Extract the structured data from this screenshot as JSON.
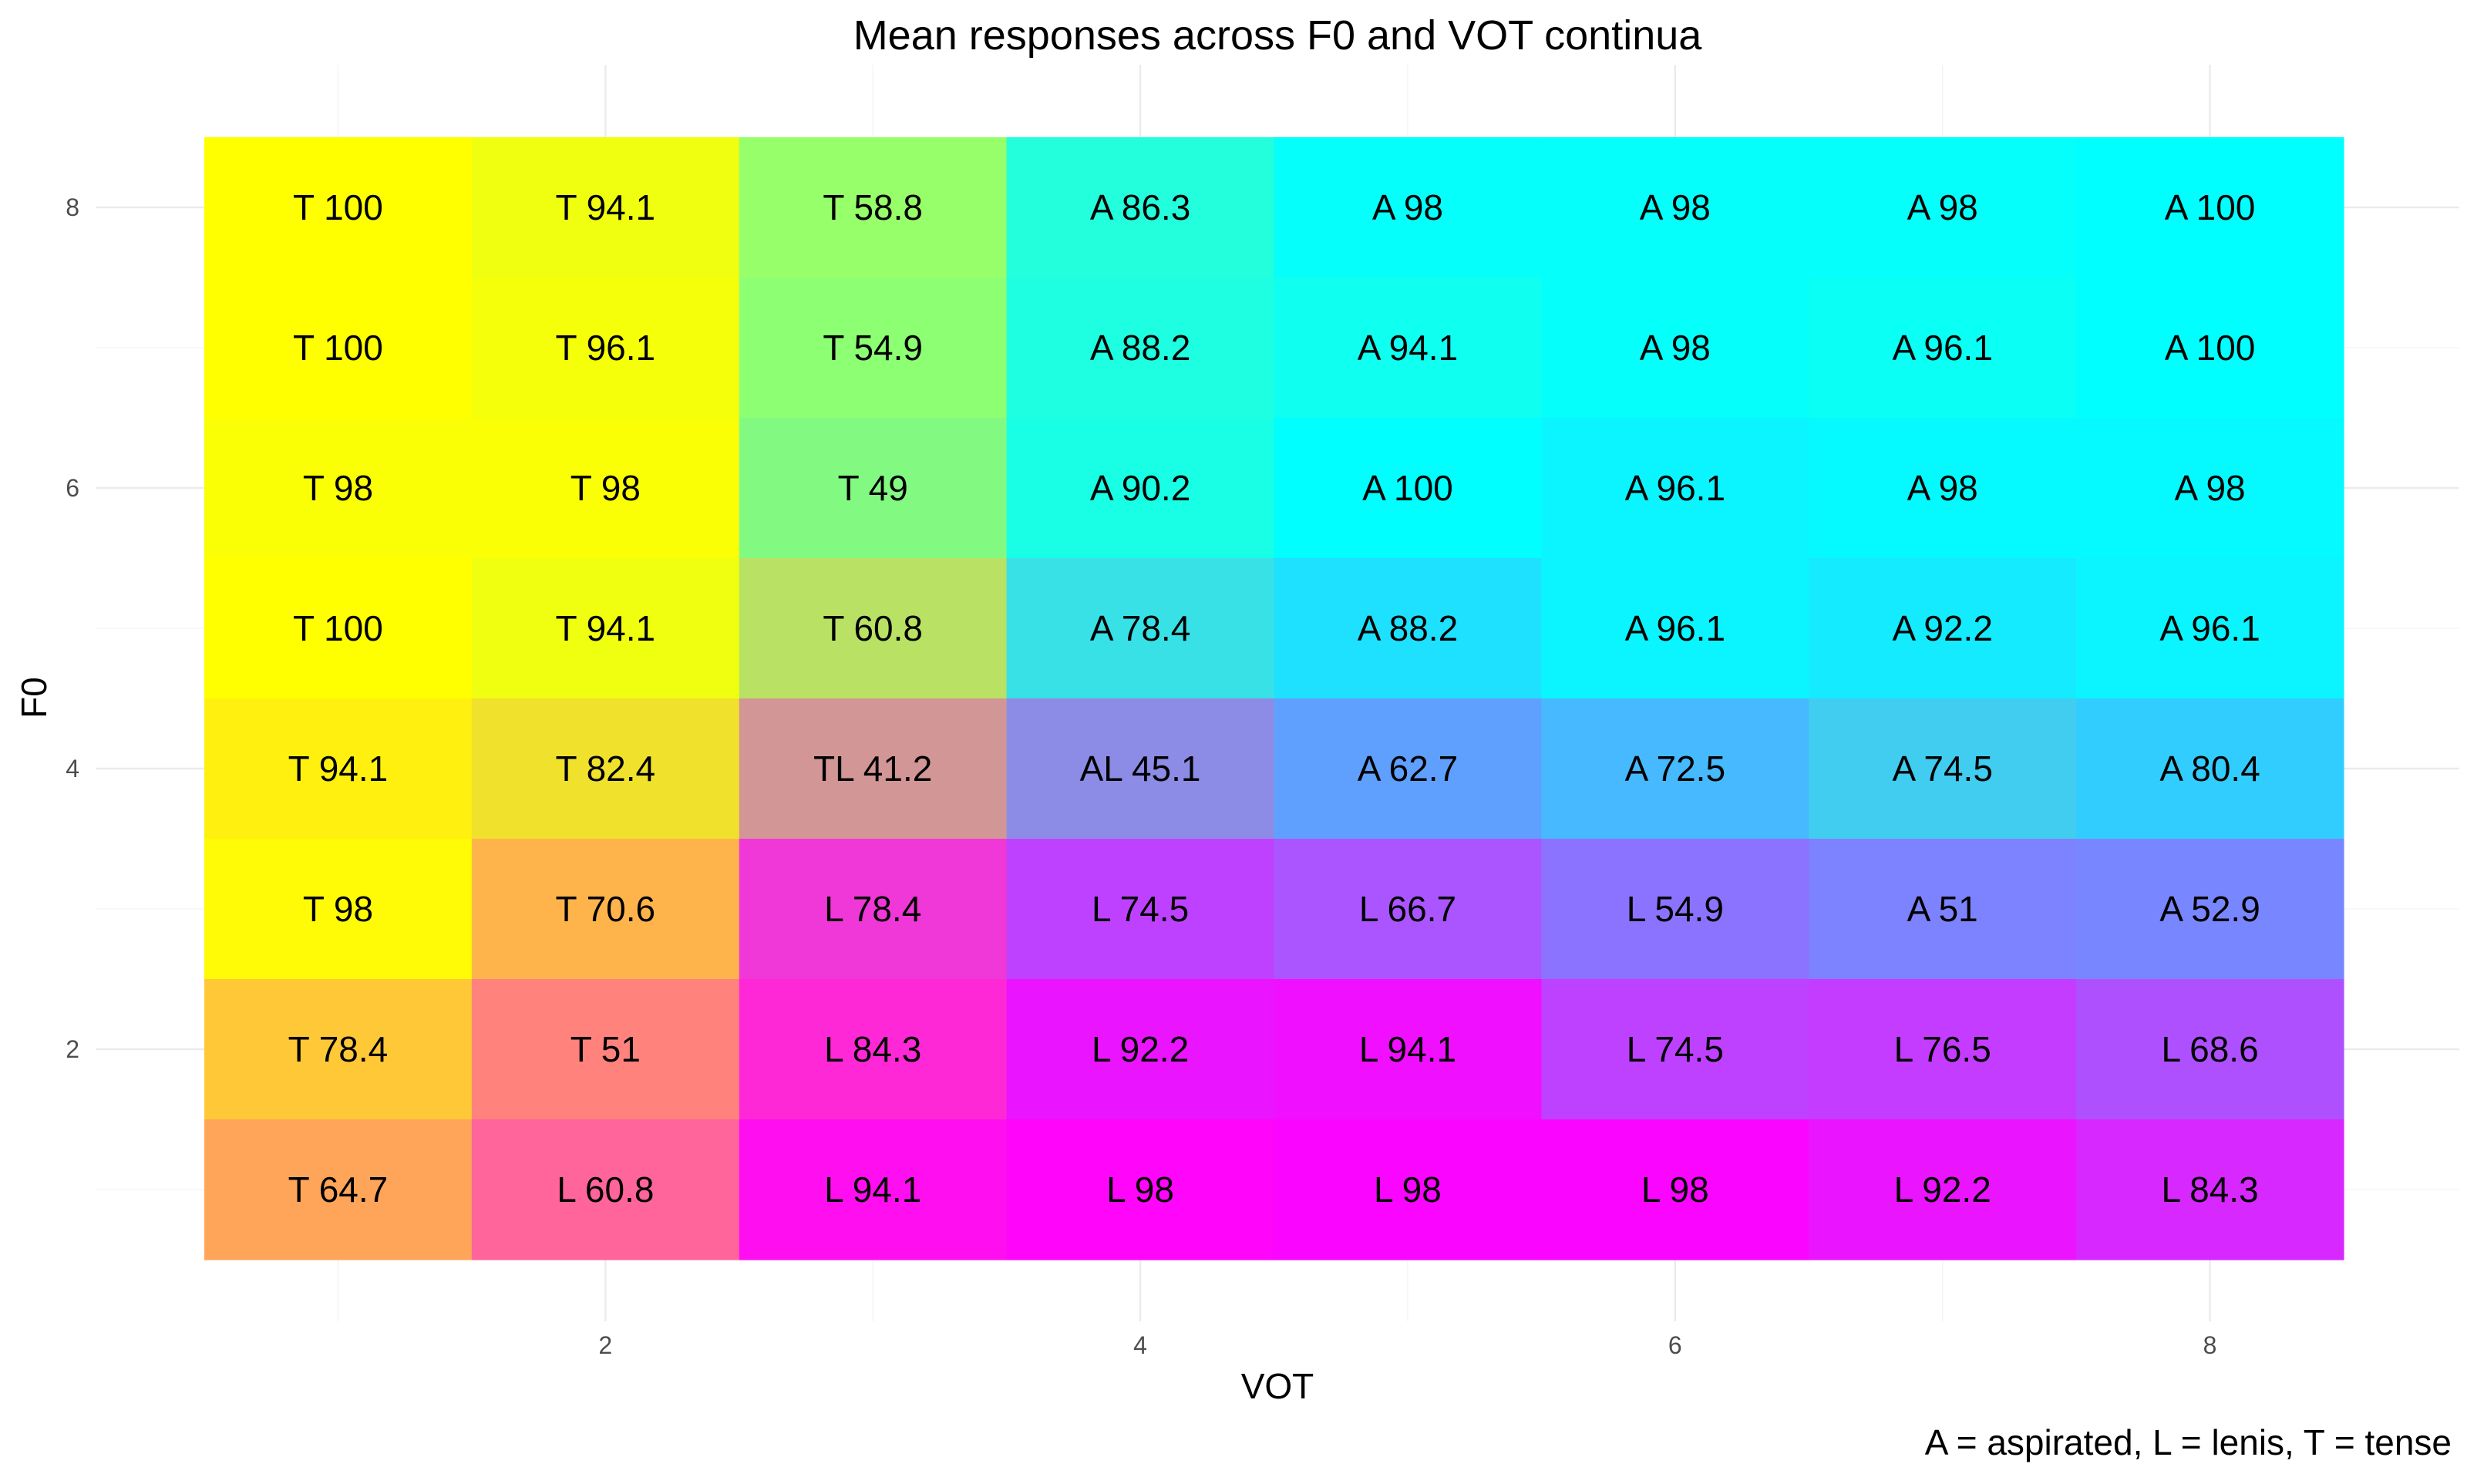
{
  "chart_data": {
    "type": "heatmap",
    "title": "Mean responses across F0 and VOT continua",
    "xlabel": "VOT",
    "ylabel": "F0",
    "caption": "A = aspirated, L = lenis, T = tense",
    "x": [
      1,
      2,
      3,
      4,
      5,
      6,
      7,
      8
    ],
    "y": [
      1,
      2,
      3,
      4,
      5,
      6,
      7,
      8
    ],
    "xlim": [
      0.5,
      8.5
    ],
    "ylim": [
      0.5,
      8.5
    ],
    "x_ticks": [
      2,
      4,
      6,
      8
    ],
    "y_ticks": [
      2,
      4,
      6,
      8
    ],
    "grid": true,
    "legend": "none",
    "category_colors": {
      "A": "#00ffff",
      "L": "#ff00ff",
      "T": "#ffff00"
    },
    "rows": [
      {
        "f0": 8,
        "cells": [
          {
            "vot": 1,
            "label": "T 100",
            "tense": 100,
            "lenis": 0,
            "aspirated": 0
          },
          {
            "vot": 2,
            "label": "T 94.1",
            "tense": 94.1,
            "lenis": 0,
            "aspirated": 5.9
          },
          {
            "vot": 3,
            "label": "T 58.8",
            "tense": 58.8,
            "lenis": 0,
            "aspirated": 41.2
          },
          {
            "vot": 4,
            "label": "A 86.3",
            "tense": 13.7,
            "lenis": 0,
            "aspirated": 86.3
          },
          {
            "vot": 5,
            "label": "A 98",
            "tense": 2,
            "lenis": 0,
            "aspirated": 98
          },
          {
            "vot": 6,
            "label": "A 98",
            "tense": 2,
            "lenis": 0,
            "aspirated": 98
          },
          {
            "vot": 7,
            "label": "A 98",
            "tense": 2,
            "lenis": 0,
            "aspirated": 98
          },
          {
            "vot": 8,
            "label": "A 100",
            "tense": 0,
            "lenis": 0,
            "aspirated": 100
          }
        ]
      },
      {
        "f0": 7,
        "cells": [
          {
            "vot": 1,
            "label": "T 100",
            "tense": 100,
            "lenis": 0,
            "aspirated": 0
          },
          {
            "vot": 2,
            "label": "T 96.1",
            "tense": 96.1,
            "lenis": 0,
            "aspirated": 3.9
          },
          {
            "vot": 3,
            "label": "T 54.9",
            "tense": 54.9,
            "lenis": 0,
            "aspirated": 45.1
          },
          {
            "vot": 4,
            "label": "A 88.2",
            "tense": 11.8,
            "lenis": 0,
            "aspirated": 88.2
          },
          {
            "vot": 5,
            "label": "A 94.1",
            "tense": 5.9,
            "lenis": 0,
            "aspirated": 94.1
          },
          {
            "vot": 6,
            "label": "A 98",
            "tense": 2,
            "lenis": 0,
            "aspirated": 98
          },
          {
            "vot": 7,
            "label": "A 96.1",
            "tense": 3.9,
            "lenis": 0,
            "aspirated": 96.1
          },
          {
            "vot": 8,
            "label": "A 100",
            "tense": 0,
            "lenis": 0,
            "aspirated": 100
          }
        ]
      },
      {
        "f0": 6,
        "cells": [
          {
            "vot": 1,
            "label": "T 98",
            "tense": 98,
            "lenis": 0,
            "aspirated": 2
          },
          {
            "vot": 2,
            "label": "T 98",
            "tense": 98,
            "lenis": 0,
            "aspirated": 2
          },
          {
            "vot": 3,
            "label": "T 49",
            "tense": 49,
            "lenis": 2,
            "aspirated": 49
          },
          {
            "vot": 4,
            "label": "A 90.2",
            "tense": 9.8,
            "lenis": 0,
            "aspirated": 90.2
          },
          {
            "vot": 5,
            "label": "A 100",
            "tense": 0,
            "lenis": 0,
            "aspirated": 100
          },
          {
            "vot": 6,
            "label": "A 96.1",
            "tense": 0,
            "lenis": 3.9,
            "aspirated": 96.1
          },
          {
            "vot": 7,
            "label": "A 98",
            "tense": 0,
            "lenis": 2,
            "aspirated": 98
          },
          {
            "vot": 8,
            "label": "A 98",
            "tense": 0,
            "lenis": 2,
            "aspirated": 98
          }
        ]
      },
      {
        "f0": 5,
        "cells": [
          {
            "vot": 1,
            "label": "T 100",
            "tense": 100,
            "lenis": 0,
            "aspirated": 0
          },
          {
            "vot": 2,
            "label": "T 94.1",
            "tense": 94.1,
            "lenis": 0,
            "aspirated": 5.9
          },
          {
            "vot": 3,
            "label": "T 60.8",
            "tense": 60.8,
            "lenis": 11.8,
            "aspirated": 27.4
          },
          {
            "vot": 4,
            "label": "A 78.4",
            "tense": 9.8,
            "lenis": 11.8,
            "aspirated": 78.4
          },
          {
            "vot": 5,
            "label": "A 88.2",
            "tense": 0,
            "lenis": 11.8,
            "aspirated": 88.2
          },
          {
            "vot": 6,
            "label": "A 96.1",
            "tense": 0,
            "lenis": 3.9,
            "aspirated": 96.1
          },
          {
            "vot": 7,
            "label": "A 92.2",
            "tense": 0,
            "lenis": 7.8,
            "aspirated": 92.2
          },
          {
            "vot": 8,
            "label": "A 96.1",
            "tense": 0,
            "lenis": 3.9,
            "aspirated": 96.1
          }
        ]
      },
      {
        "f0": 4,
        "cells": [
          {
            "vot": 1,
            "label": "T 94.1",
            "tense": 94.1,
            "lenis": 5.9,
            "aspirated": 0
          },
          {
            "vot": 2,
            "label": "T 82.4",
            "tense": 82.4,
            "lenis": 11.8,
            "aspirated": 5.9
          },
          {
            "vot": 3,
            "label": "TL 41.2",
            "tense": 41.2,
            "lenis": 41.2,
            "aspirated": 17.6
          },
          {
            "vot": 4,
            "label": "AL 45.1",
            "tense": 9.8,
            "lenis": 45.1,
            "aspirated": 45.1
          },
          {
            "vot": 5,
            "label": "A 62.7",
            "tense": 0,
            "lenis": 37.3,
            "aspirated": 62.7
          },
          {
            "vot": 6,
            "label": "A 72.5",
            "tense": 0,
            "lenis": 27.5,
            "aspirated": 72.5
          },
          {
            "vot": 7,
            "label": "A 74.5",
            "tense": 5.9,
            "lenis": 19.6,
            "aspirated": 74.5
          },
          {
            "vot": 8,
            "label": "A 80.4",
            "tense": 0,
            "lenis": 19.6,
            "aspirated": 80.4
          }
        ]
      },
      {
        "f0": 3,
        "cells": [
          {
            "vot": 1,
            "label": "T 98",
            "tense": 98,
            "lenis": 2,
            "aspirated": 0
          },
          {
            "vot": 2,
            "label": "T 70.6",
            "tense": 70.6,
            "lenis": 29.4,
            "aspirated": 0
          },
          {
            "vot": 3,
            "label": "L 78.4",
            "tense": 15.7,
            "lenis": 78.4,
            "aspirated": 5.9
          },
          {
            "vot": 4,
            "label": "L 74.5",
            "tense": 0,
            "lenis": 74.5,
            "aspirated": 25.5
          },
          {
            "vot": 5,
            "label": "L 66.7",
            "tense": 0,
            "lenis": 66.7,
            "aspirated": 33.3
          },
          {
            "vot": 6,
            "label": "L 54.9",
            "tense": 0,
            "lenis": 54.9,
            "aspirated": 45.1
          },
          {
            "vot": 7,
            "label": "A 51",
            "tense": 0,
            "lenis": 49,
            "aspirated": 51
          },
          {
            "vot": 8,
            "label": "A 52.9",
            "tense": 0,
            "lenis": 47.1,
            "aspirated": 52.9
          }
        ]
      },
      {
        "f0": 2,
        "cells": [
          {
            "vot": 1,
            "label": "T 78.4",
            "tense": 78.4,
            "lenis": 21.6,
            "aspirated": 0
          },
          {
            "vot": 2,
            "label": "T 51",
            "tense": 51,
            "lenis": 49,
            "aspirated": 0
          },
          {
            "vot": 3,
            "label": "L 84.3",
            "tense": 15.7,
            "lenis": 84.3,
            "aspirated": 0
          },
          {
            "vot": 4,
            "label": "L 92.2",
            "tense": 0,
            "lenis": 92.2,
            "aspirated": 7.8
          },
          {
            "vot": 5,
            "label": "L 94.1",
            "tense": 0,
            "lenis": 94.1,
            "aspirated": 5.9
          },
          {
            "vot": 6,
            "label": "L 74.5",
            "tense": 0,
            "lenis": 74.5,
            "aspirated": 25.5
          },
          {
            "vot": 7,
            "label": "L 76.5",
            "tense": 0,
            "lenis": 76.5,
            "aspirated": 23.5
          },
          {
            "vot": 8,
            "label": "L 68.6",
            "tense": 0,
            "lenis": 68.6,
            "aspirated": 31.4
          }
        ]
      },
      {
        "f0": 1,
        "cells": [
          {
            "vot": 1,
            "label": "T 64.7",
            "tense": 64.7,
            "lenis": 35.3,
            "aspirated": 0
          },
          {
            "vot": 2,
            "label": "L 60.8",
            "tense": 39.2,
            "lenis": 60.8,
            "aspirated": 0
          },
          {
            "vot": 3,
            "label": "L 94.1",
            "tense": 5.9,
            "lenis": 94.1,
            "aspirated": 0
          },
          {
            "vot": 4,
            "label": "L 98",
            "tense": 2,
            "lenis": 98,
            "aspirated": 0
          },
          {
            "vot": 5,
            "label": "L 98",
            "tense": 0,
            "lenis": 98,
            "aspirated": 2
          },
          {
            "vot": 6,
            "label": "L 98",
            "tense": 0,
            "lenis": 98,
            "aspirated": 2
          },
          {
            "vot": 7,
            "label": "L 92.2",
            "tense": 0,
            "lenis": 92.2,
            "aspirated": 7.8
          },
          {
            "vot": 8,
            "label": "L 84.3",
            "tense": 0,
            "lenis": 84.3,
            "aspirated": 15.7
          }
        ]
      }
    ]
  }
}
